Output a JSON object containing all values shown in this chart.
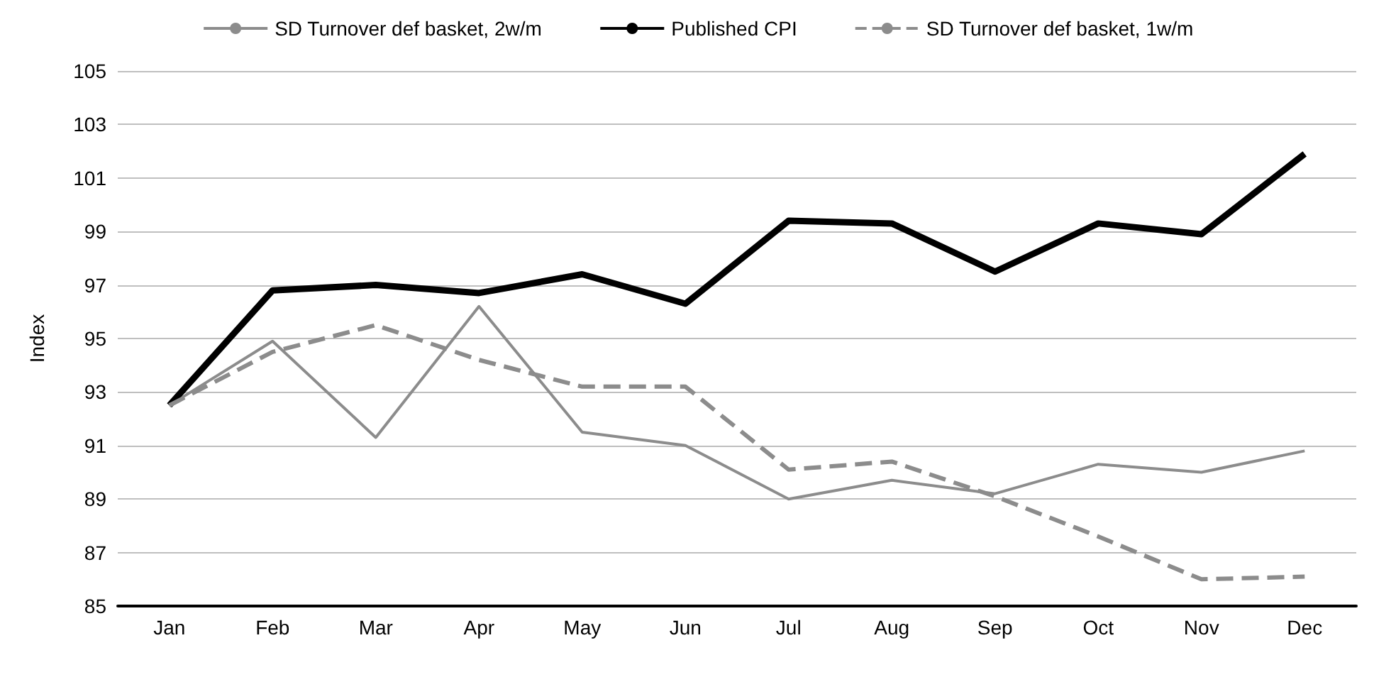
{
  "chart_data": {
    "type": "line",
    "ylabel": "Index",
    "categories": [
      "Jan",
      "Feb",
      "Mar",
      "Apr",
      "May",
      "Jun",
      "Jul",
      "Aug",
      "Sep",
      "Oct",
      "Nov",
      "Dec"
    ],
    "series": [
      {
        "name": "SD Turnover def basket, 2w/m",
        "color": "#8c8c8c",
        "line_style": "solid",
        "values": [
          92.5,
          94.9,
          91.3,
          96.2,
          91.5,
          91.0,
          89.0,
          89.7,
          89.2,
          90.3,
          90.0,
          90.8
        ]
      },
      {
        "name": "Published CPI",
        "color": "#000000",
        "line_style": "solid",
        "values": [
          92.5,
          96.8,
          97.0,
          96.7,
          97.4,
          96.3,
          99.4,
          99.3,
          97.5,
          99.3,
          98.9,
          101.9
        ]
      },
      {
        "name": "SD Turnover def basket, 1w/m",
        "color": "#8c8c8c",
        "line_style": "dashed",
        "values": [
          92.5,
          94.5,
          95.5,
          94.2,
          93.2,
          93.2,
          90.1,
          90.4,
          89.1,
          87.6,
          86.0,
          86.1
        ]
      }
    ],
    "ylim": [
      85,
      105
    ],
    "yticks": [
      85,
      87,
      89,
      91,
      93,
      95,
      97,
      99,
      101,
      103,
      105
    ],
    "grid": "y",
    "legend": "top",
    "marker": "none"
  }
}
